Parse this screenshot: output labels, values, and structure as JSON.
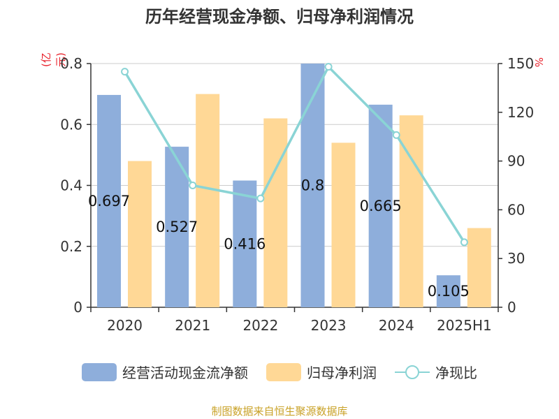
{
  "title": "历年经营现金净额、归母净利润情况",
  "unit_left": "(亿元)",
  "unit_right": "%",
  "source": "制图数据来自恒生聚源数据库",
  "colors": {
    "bar1": "#8eaedb",
    "bar2": "#ffd896",
    "line": "#8ad4d5",
    "unit": "#e8202a",
    "source": "#c9a227"
  },
  "chart_data": {
    "type": "bar",
    "categories": [
      "2020",
      "2021",
      "2022",
      "2023",
      "2024",
      "2025H1"
    ],
    "series": [
      {
        "name": "经营活动现金流净额",
        "type": "bar",
        "axis": "left",
        "values": [
          0.697,
          0.527,
          0.416,
          0.8,
          0.665,
          0.105
        ],
        "labels": [
          "0.697",
          "0.527",
          "0.416",
          "0.8",
          "0.665",
          "0.105"
        ]
      },
      {
        "name": "归母净利润",
        "type": "bar",
        "axis": "left",
        "values": [
          0.48,
          0.7,
          0.62,
          0.54,
          0.63,
          0.26
        ]
      },
      {
        "name": "净现比",
        "type": "line",
        "axis": "right",
        "values": [
          145,
          75,
          67,
          148,
          106,
          40
        ]
      }
    ],
    "left_axis": {
      "ylim": [
        0,
        0.8
      ],
      "ticks": [
        "0",
        "0.2",
        "0.4",
        "0.6",
        "0.8"
      ]
    },
    "right_axis": {
      "ylim": [
        0,
        150
      ],
      "ticks": [
        "0",
        "30",
        "60",
        "90",
        "120",
        "150"
      ]
    },
    "grid": true,
    "legend_position": "bottom"
  }
}
